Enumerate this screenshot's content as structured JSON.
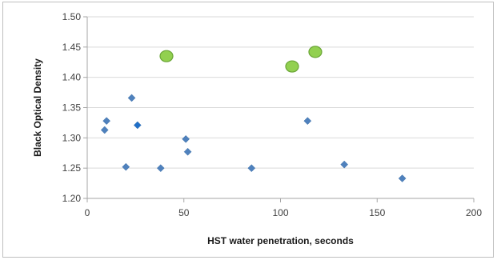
{
  "chart_data": {
    "type": "scatter",
    "title": "",
    "xlabel": "HST water penetration, seconds",
    "ylabel": "Black Optical Density",
    "xlim": [
      0,
      200
    ],
    "ylim": [
      1.2,
      1.5
    ],
    "x_ticks": [
      "0",
      "50",
      "100",
      "150",
      "200"
    ],
    "y_ticks": [
      "1.20",
      "1.25",
      "1.30",
      "1.35",
      "1.40",
      "1.45",
      "1.50"
    ],
    "grid": "horizontal",
    "legend": "none",
    "colors": {
      "diamond": "#4f81bd",
      "highlight": "#1f6fc8",
      "circle_fill": "#92d050",
      "circle_stroke": "#6aa536",
      "grid": "#d9d9d9",
      "axis": "#a6a6a6"
    },
    "series": [
      {
        "marker": "diamond",
        "points": [
          {
            "x": 9,
            "y": 1.313
          },
          {
            "x": 10,
            "y": 1.328
          },
          {
            "x": 20,
            "y": 1.252
          },
          {
            "x": 23,
            "y": 1.366
          },
          {
            "x": 26,
            "y": 1.321,
            "highlight": true
          },
          {
            "x": 38,
            "y": 1.25
          },
          {
            "x": 51,
            "y": 1.298
          },
          {
            "x": 52,
            "y": 1.277
          },
          {
            "x": 85,
            "y": 1.25
          },
          {
            "x": 114,
            "y": 1.328
          },
          {
            "x": 133,
            "y": 1.256
          },
          {
            "x": 163,
            "y": 1.233
          }
        ]
      },
      {
        "marker": "circle",
        "points": [
          {
            "x": 41,
            "y": 1.435
          },
          {
            "x": 106,
            "y": 1.418
          },
          {
            "x": 118,
            "y": 1.442
          }
        ]
      }
    ]
  }
}
